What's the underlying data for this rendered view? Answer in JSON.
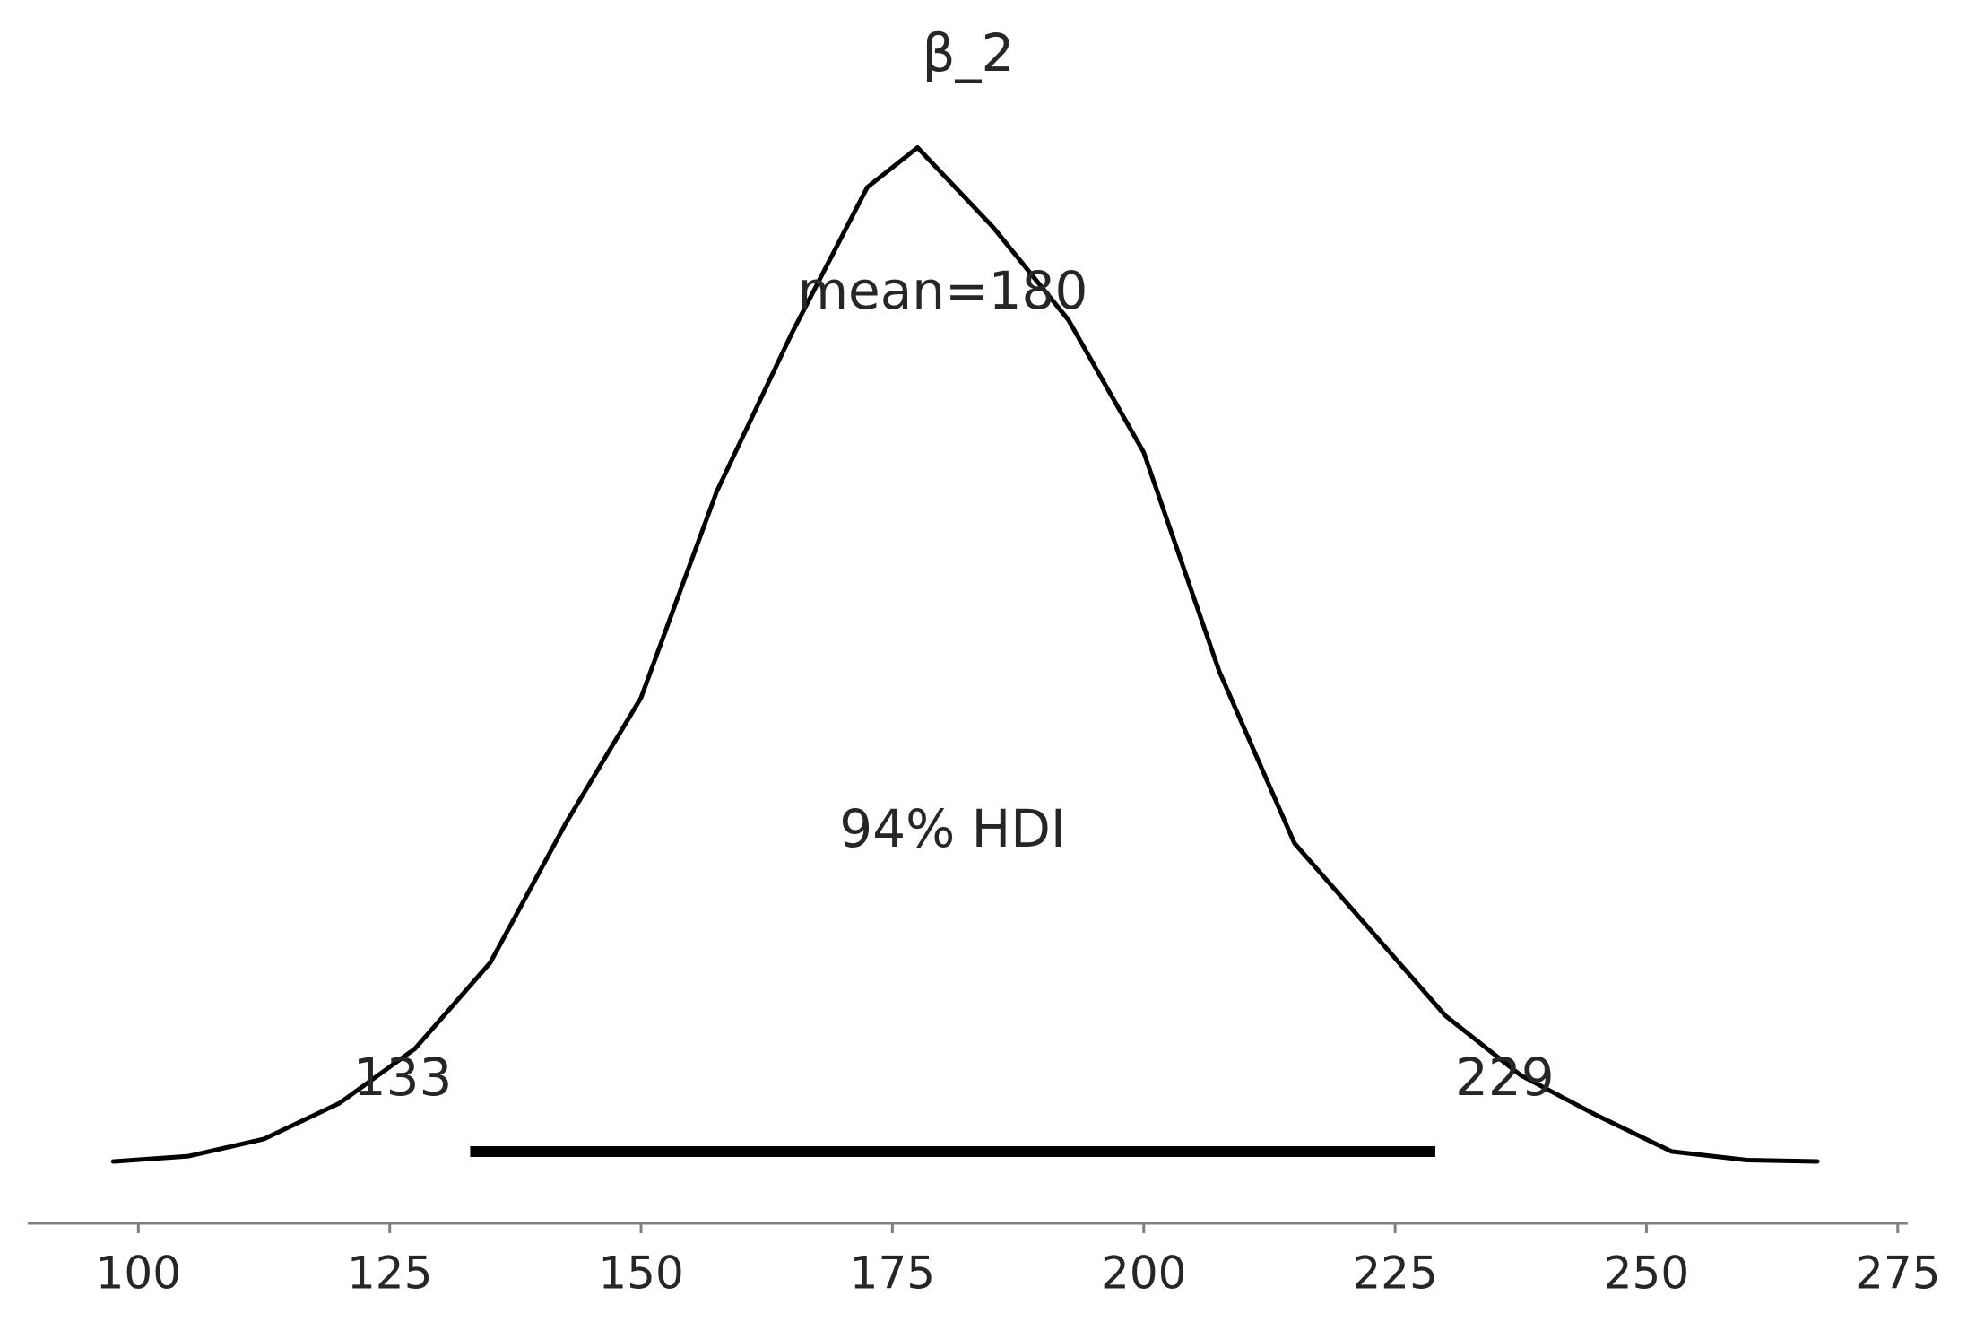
{
  "chart_data": {
    "type": "density",
    "title": "β_2",
    "x": [
      97.5,
      105,
      112.5,
      120,
      127.5,
      135,
      142.5,
      150,
      157.5,
      165,
      172.5,
      177.5,
      185,
      192.5,
      200,
      207.5,
      215,
      222.5,
      230,
      237.5,
      245,
      252.5,
      260,
      267
    ],
    "values": [
      0,
      8e-05,
      0.00034,
      0.00088,
      0.0017,
      0.003,
      0.0051,
      0.007,
      0.0101,
      0.0125,
      0.0147,
      0.0153,
      0.0141,
      0.0127,
      0.0107,
      0.0074,
      0.0048,
      0.0035,
      0.0022,
      0.0013,
      0.0007,
      0.00015,
      2e-05,
      0
    ],
    "color": "#000000",
    "mean": {
      "value": 180,
      "label": "mean=180"
    },
    "hdi": {
      "lower": 133,
      "upper": 229,
      "label": "94% HDI"
    },
    "xlim": [
      89,
      276
    ],
    "ylim": [
      0,
      0.0153
    ],
    "xticks": [
      100,
      125,
      150,
      175,
      200,
      225,
      250,
      275
    ]
  }
}
